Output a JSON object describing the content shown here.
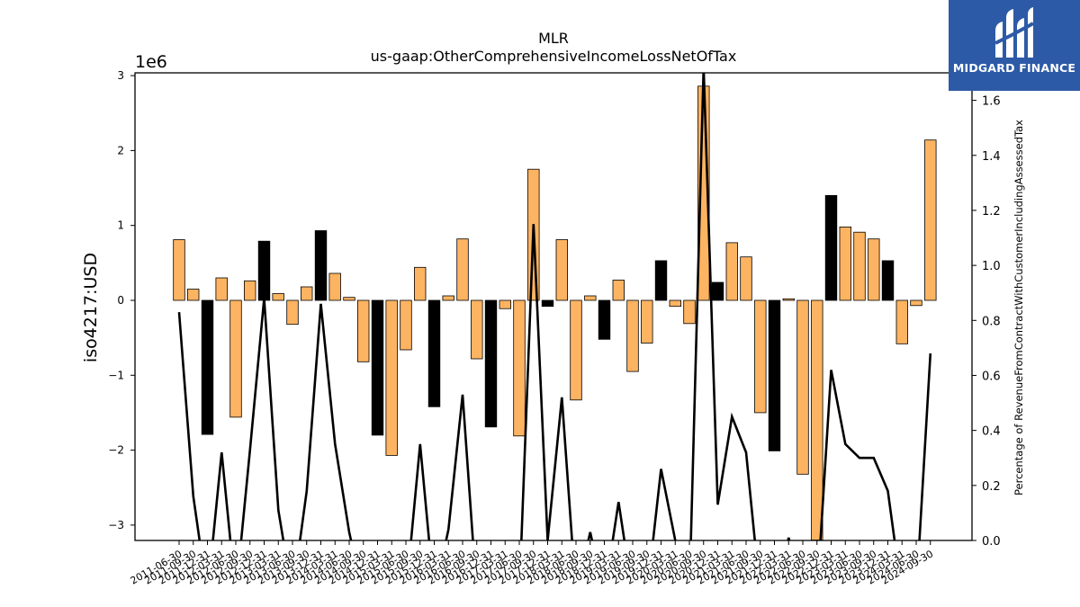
{
  "chart_data": {
    "type": "bar",
    "title": "MLR",
    "subtitle": "us-gaap:OtherComprehensiveIncomeLossNetOfTax",
    "ylabel": "iso4217:USD",
    "y_multiplier_label": "1e6",
    "y2label": "Percentage of RevenueFromContractWithCustomerIncludingAssessedTax",
    "ylim": [
      -3.2,
      3.0
    ],
    "y2lim": [
      0.0,
      1.7
    ],
    "yticks": [
      "3",
      "2",
      "1",
      "0",
      "−1",
      "−2",
      "−3"
    ],
    "y2ticks": [
      "0.0",
      "0.2",
      "0.4",
      "0.6",
      "0.8",
      "1.0",
      "1.2",
      "1.4",
      "1.6"
    ],
    "grid": false,
    "categories": [
      "2011-06-30",
      "2011-09-30",
      "2011-12-31",
      "2012-03-31",
      "2012-06-30",
      "2012-09-30",
      "2012-12-31",
      "2013-03-31",
      "2013-06-30",
      "2013-09-30",
      "2013-12-31",
      "2014-03-31",
      "2014-06-30",
      "2014-09-30",
      "2014-12-31",
      "2015-03-31",
      "2015-06-30",
      "2015-09-30",
      "2015-12-31",
      "2016-03-31",
      "2016-06-30",
      "2016-09-30",
      "2016-12-31",
      "2017-03-31",
      "2017-06-30",
      "2017-09-30",
      "2017-12-31",
      "2018-03-31",
      "2018-06-30",
      "2018-09-30",
      "2018-12-31",
      "2019-03-31",
      "2019-06-30",
      "2019-09-30",
      "2019-12-31",
      "2020-03-31",
      "2020-06-30",
      "2020-09-30",
      "2020-12-31",
      "2021-03-31",
      "2021-06-30",
      "2021-09-30",
      "2021-12-31",
      "2022-03-31",
      "2022-06-30",
      "2022-09-30",
      "2022-12-31",
      "2023-03-31",
      "2023-06-30",
      "2023-09-30",
      "2023-12-31",
      "2024-03-31",
      "2024-06-30",
      "2024-09-30"
    ],
    "tick_labels": [
      "2011-06-30",
      "2011-09-30",
      "2011-12-31",
      "2012-03-31",
      "2012-06-30",
      "2012-09-30",
      "2012-12-31",
      "2013-03-31",
      "2013-06-30",
      "2013-09-30",
      "2013-12-31",
      "2014-03-31",
      "2014-06-30",
      "2014-09-30",
      "2014-12-31",
      "2015-03-31",
      "2015-06-30",
      "2015-09-30",
      "2015-12-31",
      "2016-03-31",
      "2016-06-30",
      "2016-09-30",
      "2016-12-31",
      "2017-03-31",
      "2017-06-30",
      "2017-09-30",
      "2017-12-31",
      "2018-03-31",
      "2018-06-30",
      "2018-09-30",
      "2018-12-31",
      "2019-03-31",
      "2019-06-30",
      "2019-09-30",
      "2019-12-31",
      "2020-03-31",
      "2020-06-30",
      "2020-09-30",
      "2020-12-31",
      "2021-03-31",
      "2021-06-30",
      "2021-09-30",
      "2021-12-31",
      "2022-03-31",
      "2022-06-30",
      "2022-09-30",
      "2022-12-31",
      "2023-03-31",
      "2023-06-30",
      "2023-09-30",
      "2023-12-31",
      "2024-03-31",
      "2024-06-30",
      "2024-09-30"
    ],
    "values": [
      0.81,
      0.15,
      -1.79,
      0.3,
      -1.56,
      0.26,
      0.79,
      0.09,
      -0.32,
      0.18,
      0.93,
      0.36,
      0.04,
      -0.82,
      -1.8,
      -2.07,
      -0.66,
      0.44,
      -1.42,
      0.06,
      0.82,
      -0.78,
      -1.69,
      -0.11,
      -1.81,
      1.75,
      -0.08,
      0.81,
      -1.33,
      0.06,
      -0.52,
      0.27,
      -0.95,
      -0.57,
      0.53,
      -0.08,
      -0.31,
      2.86,
      0.24,
      0.77,
      0.58,
      -1.5,
      -2.01,
      0.02,
      -2.32,
      -3.2,
      1.4,
      0.98,
      0.91,
      0.82,
      0.53,
      -0.58,
      -0.07,
      2.14
    ],
    "bar_kind": [
      "o",
      "o",
      "k",
      "o",
      "o",
      "o",
      "k",
      "o",
      "o",
      "o",
      "k",
      "o",
      "o",
      "o",
      "k",
      "o",
      "o",
      "o",
      "k",
      "o",
      "o",
      "o",
      "k",
      "o",
      "o",
      "o",
      "k",
      "o",
      "o",
      "o",
      "k",
      "o",
      "o",
      "o",
      "k",
      "o",
      "o",
      "o",
      "k",
      "o",
      "o",
      "o",
      "k",
      "o",
      "o",
      "o",
      "k",
      "o",
      "o",
      "o",
      "k",
      "o",
      "o",
      "o"
    ],
    "line_values": [
      0.83,
      0.16,
      -0.2,
      0.32,
      -0.2,
      0.33,
      0.88,
      0.11,
      -0.2,
      0.18,
      0.86,
      0.35,
      0.03,
      -0.2,
      -0.2,
      -0.2,
      -0.2,
      0.35,
      -0.2,
      0.04,
      0.53,
      -0.2,
      -0.2,
      -0.2,
      -0.2,
      1.15,
      0.0,
      0.52,
      -0.2,
      0.03,
      -0.2,
      0.14,
      -0.2,
      -0.2,
      0.26,
      0.0,
      -0.2,
      1.72,
      0.13,
      0.45,
      0.32,
      -0.2,
      -0.2,
      0.01,
      -0.2,
      -0.2,
      0.62,
      0.35,
      0.3,
      0.3,
      0.18,
      -0.2,
      -0.2,
      0.68
    ],
    "colors": {
      "orange": "#fdb462",
      "black": "#000000",
      "line": "#000000"
    }
  },
  "logo": {
    "name": "MIDGARD FINANCE",
    "bg": "#2d5aa6"
  }
}
